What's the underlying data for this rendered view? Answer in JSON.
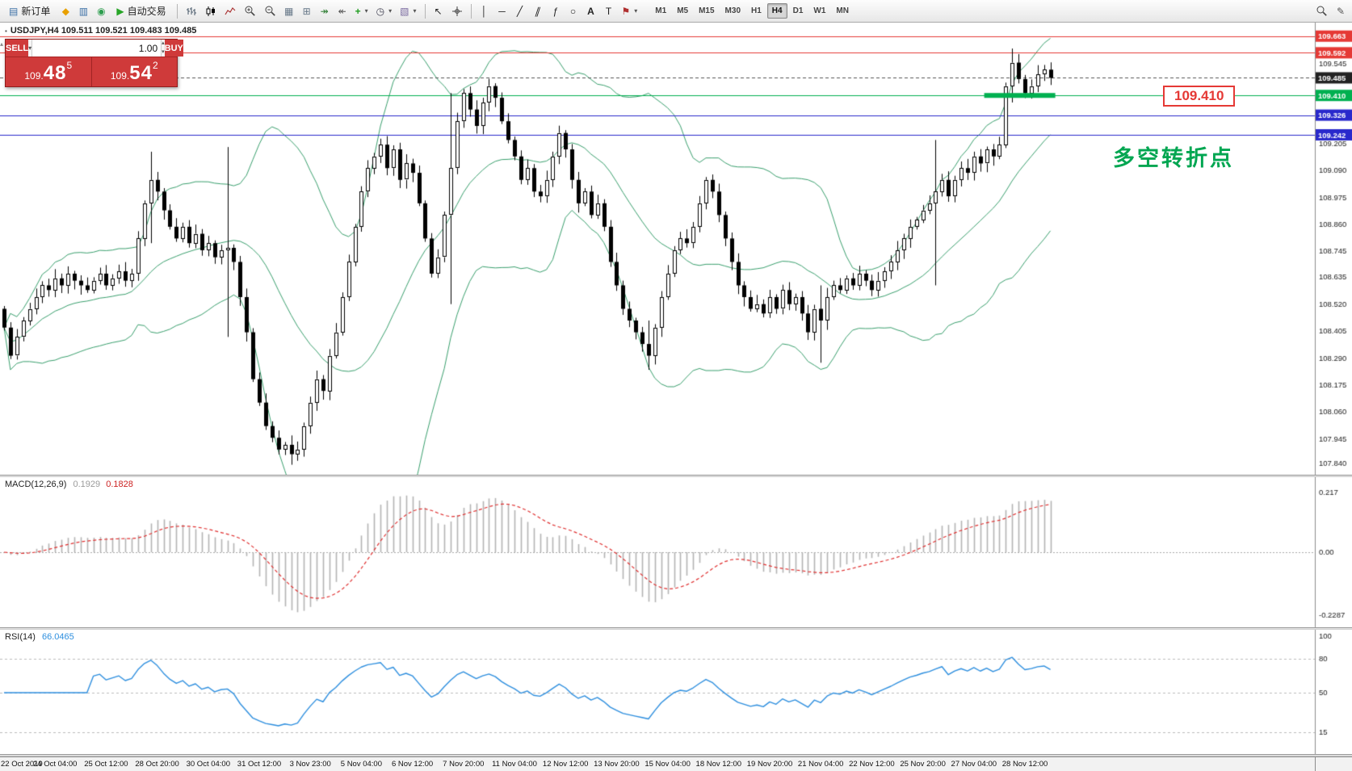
{
  "colors": {
    "up_candle": "#ffffff",
    "down_candle": "#000000",
    "candle_border": "#000000",
    "bollinger": "#3aa06e",
    "resistance_line": "#e53935",
    "support_line": "#2929cc",
    "pivot_line": "#00b050",
    "last_price_badge": "#222222",
    "macd_histogram": "#b4b4b4",
    "macd_signal": "#e03030",
    "rsi_line": "#2e8fdf",
    "annotation_green": "#00a651",
    "callout_red": "#e53935",
    "trade_panel_red": "#cf3a3a"
  },
  "icons": {
    "new_order": "▤",
    "metaeditor": "◆",
    "market_watch": "▥",
    "alerts": "◉",
    "play": "▶",
    "grid": "▦",
    "tile_windows": "⊞",
    "auto_scroll": "↠",
    "chart_shift": "↞",
    "indicators_plus": "+",
    "clock": "◷",
    "template": "▧",
    "cursor": "↖",
    "vline": "│",
    "hline": "─",
    "trendline": "╱",
    "channel": "∥",
    "fibonacci": "ƒ",
    "shapes": "○",
    "text_tool": "A",
    "label_tool": "T",
    "arrows_flag": "⚑",
    "dropdown": "▾",
    "edit": "✎",
    "spin_up": "▴",
    "spin_down": "▾",
    "collapse": "▴",
    "title_marker": "▪"
  },
  "toolbar": {
    "new_order_label": "新订单",
    "auto_trading_label": "自动交易",
    "timeframes": [
      "M1",
      "M5",
      "M15",
      "M30",
      "H1",
      "H4",
      "D1",
      "W1",
      "MN"
    ],
    "active_timeframe": "H4"
  },
  "chart_header": {
    "symbol_line": "USDJPY,H4 109.511 109.521 109.483 109.485"
  },
  "trade_panel": {
    "sell_label": "SELL",
    "buy_label": "BUY",
    "lot_size": "1.00",
    "sell_price": {
      "prefix": "109.",
      "big": "48",
      "sup": "5"
    },
    "buy_price": {
      "prefix": "109.",
      "big": "54",
      "sup": "2"
    }
  },
  "annotations": {
    "turning_point_text": "多空转折点",
    "price_callout": "109.410"
  },
  "chart_data": {
    "type": "candlestick",
    "symbol": "USDJPY",
    "timeframe": "H4",
    "title": "USDJPY,H4",
    "ohlc_header": [
      109.511,
      109.521,
      109.483,
      109.485
    ],
    "price_axis": {
      "min": 107.82,
      "max": 109.7,
      "ticks": [
        109.545,
        109.205,
        109.09,
        108.975,
        108.86,
        108.745,
        108.635,
        108.52,
        108.405,
        108.29,
        108.175,
        108.06,
        107.945,
        107.84
      ]
    },
    "candles": {
      "first_open": 108.5,
      "closes": [
        108.42,
        108.3,
        108.38,
        108.45,
        108.5,
        108.55,
        108.6,
        108.58,
        108.63,
        108.6,
        108.65,
        108.62,
        108.6,
        108.58,
        108.62,
        108.65,
        108.6,
        108.63,
        108.66,
        108.62,
        108.65,
        108.8,
        108.95,
        109.05,
        109.0,
        108.92,
        108.85,
        108.8,
        108.85,
        108.78,
        108.82,
        108.75,
        108.78,
        108.72,
        108.75,
        108.76,
        108.7,
        108.55,
        108.4,
        108.2,
        108.1,
        108.0,
        107.95,
        107.9,
        107.92,
        107.88,
        107.9,
        108.0,
        108.1,
        108.2,
        108.15,
        108.3,
        108.4,
        108.55,
        108.7,
        108.85,
        109.0,
        109.1,
        109.15,
        109.2,
        109.1,
        109.18,
        109.05,
        109.12,
        109.08,
        108.95,
        108.8,
        108.65,
        108.72,
        108.9,
        109.1,
        109.3,
        109.42,
        109.35,
        109.28,
        109.38,
        109.45,
        109.4,
        109.3,
        109.22,
        109.15,
        109.05,
        109.1,
        109.0,
        108.98,
        109.05,
        109.15,
        109.25,
        109.18,
        109.05,
        108.95,
        109.0,
        108.9,
        108.95,
        108.85,
        108.7,
        108.6,
        108.5,
        108.45,
        108.4,
        108.35,
        108.3,
        108.42,
        108.55,
        108.65,
        108.75,
        108.8,
        108.78,
        108.85,
        108.95,
        109.05,
        109.0,
        108.9,
        108.8,
        108.7,
        108.6,
        108.55,
        108.5,
        108.52,
        108.48,
        108.55,
        108.5,
        108.58,
        108.52,
        108.55,
        108.48,
        108.4,
        108.5,
        108.45,
        108.55,
        108.6,
        108.58,
        108.63,
        108.6,
        108.65,
        108.62,
        108.58,
        108.62,
        108.66,
        108.7,
        108.75,
        108.8,
        108.85,
        108.88,
        108.92,
        108.95,
        109.0,
        109.05,
        108.98,
        109.05,
        109.1,
        109.08,
        109.15,
        109.12,
        109.18,
        109.15,
        109.2,
        109.45,
        109.55,
        109.48,
        109.42,
        109.45,
        109.5,
        109.52,
        109.485
      ],
      "wick_overrides": {
        "23": [
          109.17,
          108.78
        ],
        "35": [
          109.19,
          108.38
        ],
        "45": [
          107.96,
          107.835
        ],
        "70": [
          109.42,
          108.52
        ],
        "101": [
          108.45,
          108.24
        ],
        "128": [
          108.6,
          108.27
        ],
        "146": [
          109.22,
          108.6
        ],
        "158": [
          109.61,
          109.38
        ]
      }
    },
    "overlays": {
      "bollinger": {
        "period": 20,
        "deviation": 2
      }
    },
    "levels": [
      {
        "price": 109.663,
        "color": "#e53935",
        "style": "solid",
        "badge": true
      },
      {
        "price": 109.592,
        "color": "#e53935",
        "style": "solid",
        "badge": true
      },
      {
        "price": 109.485,
        "color": "#555555",
        "style": "dash",
        "badge": true,
        "badge_color": "#222222"
      },
      {
        "price": 109.41,
        "color": "#00b050",
        "style": "solid",
        "badge": true,
        "highlight_segment": true,
        "segment_from_index": 154,
        "segment_to_index": 164
      },
      {
        "price": 109.326,
        "color": "#2929cc",
        "style": "solid",
        "badge": true
      },
      {
        "price": 109.242,
        "color": "#2929cc",
        "style": "solid",
        "badge": true
      }
    ],
    "indicators": {
      "macd": {
        "label": "MACD(12,26,9)",
        "value_main": "0.1929",
        "value_signal": "0.1828",
        "fast": 12,
        "slow": 26,
        "signal": 9,
        "scale_labels": [
          {
            "text": "0.217",
            "value": 0.217
          },
          {
            "text": "0.00",
            "value": 0
          },
          {
            "text": "-0.2287",
            "value": -0.2287
          }
        ]
      },
      "rsi": {
        "label": "RSI(14)",
        "value": "66.0465",
        "period": 14,
        "scale_labels": [
          {
            "text": "100",
            "value": 100
          },
          {
            "text": "80",
            "value": 80
          },
          {
            "text": "50",
            "value": 50
          },
          {
            "text": "15",
            "value": 15
          }
        ],
        "levels": [
          80,
          50,
          15
        ]
      }
    },
    "time_axis": [
      {
        "label": "22 Oct 2019",
        "i": 0
      },
      {
        "label": "24 Oct 04:00",
        "i": 8
      },
      {
        "label": "25 Oct 12:00",
        "i": 16
      },
      {
        "label": "28 Oct 20:00",
        "i": 24
      },
      {
        "label": "30 Oct 04:00",
        "i": 32
      },
      {
        "label": "31 Oct 12:00",
        "i": 40
      },
      {
        "label": "3 Nov 23:00",
        "i": 48
      },
      {
        "label": "5 Nov 04:00",
        "i": 56
      },
      {
        "label": "6 Nov 12:00",
        "i": 64
      },
      {
        "label": "7 Nov 20:00",
        "i": 72
      },
      {
        "label": "11 Nov 04:00",
        "i": 80
      },
      {
        "label": "12 Nov 12:00",
        "i": 88
      },
      {
        "label": "13 Nov 20:00",
        "i": 96
      },
      {
        "label": "15 Nov 04:00",
        "i": 104
      },
      {
        "label": "18 Nov 12:00",
        "i": 112
      },
      {
        "label": "19 Nov 20:00",
        "i": 120
      },
      {
        "label": "21 Nov 04:00",
        "i": 128
      },
      {
        "label": "22 Nov 12:00",
        "i": 136
      },
      {
        "label": "25 Nov 20:00",
        "i": 144
      },
      {
        "label": "27 Nov 04:00",
        "i": 152
      },
      {
        "label": "28 Nov 12:00",
        "i": 160
      }
    ]
  }
}
